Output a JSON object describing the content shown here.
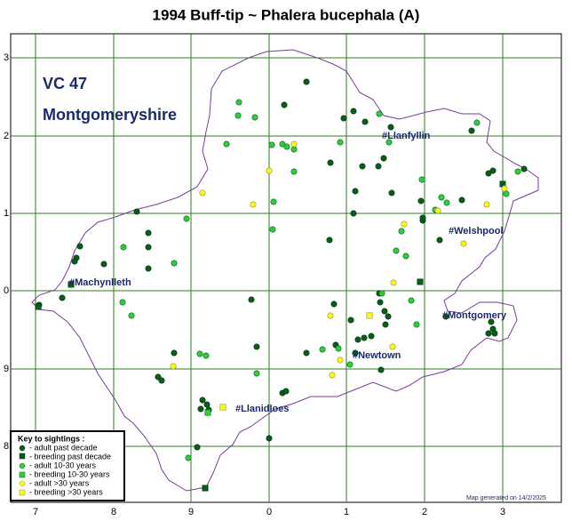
{
  "title": "1994 Buff-tip ~ Phalera bucephala (A)",
  "vc": {
    "code": "VC 47",
    "name": "Montgomeryshire"
  },
  "grid": {
    "x_labels": [
      "7",
      "8",
      "9",
      "0",
      "1",
      "2",
      "3"
    ],
    "y_labels": [
      "3",
      "2",
      "1",
      "0",
      "9",
      "8"
    ]
  },
  "towns": [
    "#Llanfyllin",
    "#Welshpool",
    "#Machynlleth",
    "#Montgomery",
    "#Newtown",
    "#Llanidloes"
  ],
  "legend": {
    "title": "Key to sightings :",
    "items": [
      "- adult past decade",
      "- breeding past decade",
      "- adult 10-30 years",
      "- breeding 10-30 years",
      "- adult >30 years",
      "- breeding >30 years"
    ]
  },
  "footer": "Map generated on 14/2/2025"
}
